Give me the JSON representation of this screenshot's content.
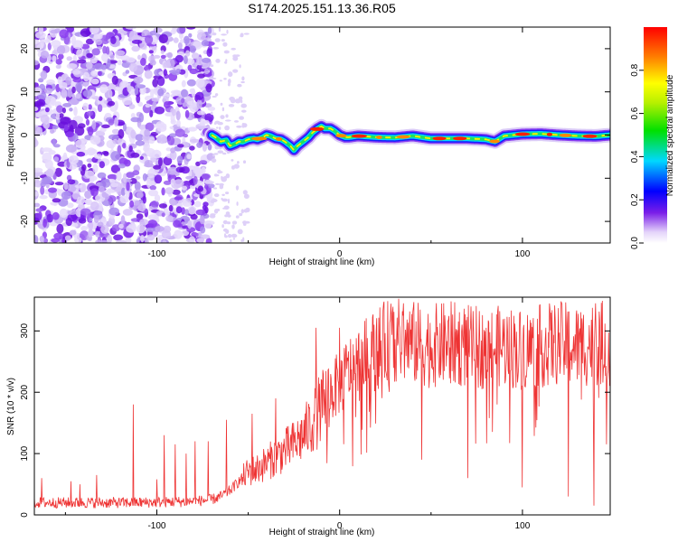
{
  "title": "S174.2025.151.13.36.R05",
  "chart_data": [
    {
      "type": "heatmap",
      "xlabel": "Height of straight line (km)",
      "ylabel": "Frequency (Hz)",
      "xlim": [
        -167,
        148
      ],
      "ylim": [
        -25,
        25
      ],
      "x_ticks": [
        -100,
        0,
        100
      ],
      "y_ticks": [
        -20,
        -10,
        0,
        10,
        20
      ],
      "colorbar": {
        "label": "Normalized spectral amplitude",
        "ticks": [
          0.0,
          0.2,
          0.4,
          0.6,
          0.8
        ],
        "range": [
          0,
          1
        ]
      },
      "ridge": {
        "x": [
          -70,
          -68,
          -65,
          -62,
          -60,
          -57,
          -55,
          -53,
          -50,
          -47,
          -45,
          -42,
          -40,
          -38,
          -35,
          -32,
          -30,
          -27,
          -25,
          -23,
          -20,
          -17,
          -15,
          -12,
          -10,
          -8,
          -5,
          -3,
          0,
          3,
          5,
          10,
          20,
          30,
          40,
          50,
          60,
          70,
          80,
          85,
          90,
          95,
          100,
          110,
          120,
          130,
          140,
          148
        ],
        "freq": [
          0.0,
          -0.5,
          -1.5,
          -1.2,
          -2.5,
          -2.0,
          -1.5,
          -1.6,
          -1.0,
          -0.8,
          -1.0,
          -0.5,
          0.0,
          -0.2,
          -0.8,
          -1.0,
          -1.5,
          -2.5,
          -3.5,
          -2.5,
          -1.5,
          -0.5,
          0.5,
          1.5,
          2.0,
          1.5,
          1.5,
          1.0,
          0.0,
          -0.5,
          -0.5,
          -0.2,
          -0.5,
          -0.6,
          -0.2,
          -0.8,
          -0.8,
          -0.8,
          -1.0,
          -1.5,
          -0.2,
          0.0,
          0.2,
          0.3,
          0.0,
          -0.2,
          -0.3,
          0.0
        ]
      }
    },
    {
      "type": "line",
      "xlabel": "Height of straight line (km)",
      "ylabel": "SNR (10 * v/v)",
      "xlim": [
        -167,
        148
      ],
      "ylim": [
        0,
        355
      ],
      "x_ticks": [
        -100,
        0,
        100
      ],
      "y_ticks": [
        0,
        100,
        200,
        300
      ],
      "series": [
        {
          "color": "#ee3333",
          "envelope": {
            "x": [
              -167,
              -140,
              -110,
              -80,
              -70,
              -65,
              -60,
              -55,
              -50,
              -45,
              -40,
              -35,
              -30,
              -25,
              -20,
              -15,
              -10,
              -5,
              0,
              5,
              10,
              15,
              20,
              25,
              30,
              40,
              50,
              60,
              70,
              80,
              90,
              100,
              110,
              120,
              130,
              140,
              148
            ],
            "y": [
              20,
              20,
              20,
              22,
              25,
              30,
              40,
              55,
              70,
              75,
              85,
              95,
              105,
              115,
              130,
              150,
              175,
              200,
              215,
              235,
              245,
              260,
              270,
              280,
              285,
              280,
              275,
              280,
              275,
              270,
              275,
              270,
              275,
              280,
              275,
              280,
              280
            ]
          },
          "spikes": [
            {
              "x": -163,
              "y": 60
            },
            {
              "x": -147,
              "y": 55
            },
            {
              "x": -142,
              "y": 50
            },
            {
              "x": -133,
              "y": 65
            },
            {
              "x": -113,
              "y": 180
            },
            {
              "x": -100,
              "y": 58
            },
            {
              "x": -96,
              "y": 130
            },
            {
              "x": -90,
              "y": 115
            },
            {
              "x": -84,
              "y": 100
            },
            {
              "x": -79,
              "y": 120
            },
            {
              "x": -72,
              "y": 120
            },
            {
              "x": -62,
              "y": 155
            },
            {
              "x": -48,
              "y": 165
            },
            {
              "x": -35,
              "y": 190
            },
            {
              "x": -13,
              "y": 305
            },
            {
              "x": 0,
              "y": 305
            },
            {
              "x": 35,
              "y": 345
            },
            {
              "x": 140,
              "y": 345
            }
          ],
          "dips": [
            {
              "x": 45,
              "y": 90
            },
            {
              "x": 70,
              "y": 60
            },
            {
              "x": 100,
              "y": 45
            },
            {
              "x": 125,
              "y": 30
            },
            {
              "x": 139,
              "y": 15
            },
            {
              "x": 146,
              "y": 115
            }
          ]
        }
      ]
    }
  ]
}
